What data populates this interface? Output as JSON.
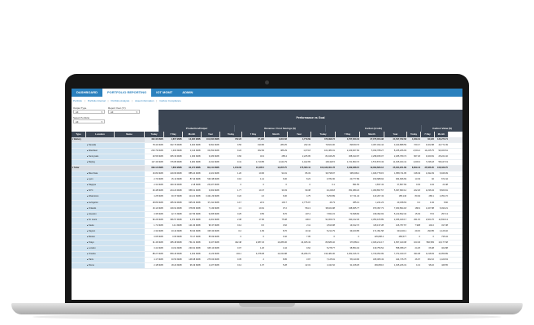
{
  "nav": {
    "tabs": [
      {
        "label": "DASHBOARD"
      },
      {
        "label": "PORTFOLIO REPORTING"
      },
      {
        "label": "IOT MGMT"
      },
      {
        "label": "ADMIN"
      }
    ],
    "active_tab": "PORTFOLIO REPORTING"
  },
  "subnav": [
    "Portfolio",
    "Portfolio Internal",
    "Portfolio Analysis",
    "Asset Information",
    "Carbon Compliance"
  ],
  "filters": {
    "output_type_label": "Output Type",
    "output_type_value": "All",
    "report_year_label": "Report Year (Yr)",
    "report_year_value": "All",
    "select_portfolio_label": "Select Portfolio",
    "select_portfolio_value": "All"
  },
  "table": {
    "super_header": "Performance vs Goal",
    "group_headers": [
      "Production/Output",
      "Revenue / Cost Savings ($)",
      "Carbon (tco2e)",
      "Carbon Value ($)"
    ],
    "col_headers": [
      "Type",
      "Location",
      "Name",
      "Today",
      "7 Day",
      "Month",
      "Year",
      "Today",
      "7 Day",
      "Month",
      "Year",
      "Today",
      "7 Day",
      "Month",
      "Year",
      "Today",
      "7 Day",
      "Month"
    ],
    "rows": [
      {
        "kind": "group",
        "type": "Battery",
        "loc": "",
        "name": "",
        "v": [
          "402.32 MWh",
          "3,807 MWh",
          "13,295 MWh",
          "131,002 MWh",
          "722.23",
          "37,195",
          "3,903.58",
          "4,779.69",
          "370,998.73",
          "4,707,000.04",
          "27,075,003.98",
          "34,537,782.66",
          "4,369.31",
          "84,026",
          "133,270.74"
        ]
      },
      {
        "kind": "child",
        "type": "",
        "loc": "Nevada",
        "name": "",
        "v": [
          "78.44 MWh",
          "322.79 MWh",
          "3,400 MWh",
          "9,991 MWh",
          "9.56",
          "190.86",
          "280.25",
          "232.43",
          "79,604.00",
          "828,847.8",
          "3,367,494.44",
          "3,423,888.59",
          "720.17",
          "3,402.88",
          "42,772.49"
        ]
      },
      {
        "kind": "child",
        "type": "",
        "loc": "Aberdeen",
        "name": "",
        "v": [
          "203.79 MWh",
          "1,463 MWh",
          "3,113 MWh",
          "33,252 MWh",
          "9.22",
          "302.84",
          "386.29",
          "1,074.8",
          "101,380.31",
          "2,229,907.84",
          "5,033,788.27",
          "8,235,266.93",
          "2,001.2",
          "14,225.75",
          "90,320.61"
        ]
      },
      {
        "kind": "child",
        "type": "",
        "loc": "Sunnyvale",
        "name": "",
        "v": [
          "20.56 MWh",
          "305.33 MWh",
          "1,303 MWh",
          "3,183 MWh",
          "0.60",
          "43.3",
          "285.4",
          "2,225.95",
          "81,946.25",
          "368,913.97",
          "2,298,935.07",
          "2,295,780.74",
          "667.18",
          "3,320.81",
          "25,221.02"
        ]
      },
      {
        "kind": "child",
        "type": "",
        "loc": "Beijing",
        "name": "",
        "v": [
          "117.43 MWh",
          "715.86 MWh",
          "3,481 MWh",
          "4,191 MWh",
          "9.41",
          "1,710.85",
          "2,444.79",
          "4,422.65",
          "139,320.5",
          "1,721,803.72",
          "4,572,873.43",
          "11,915,324.41",
          "1,003.3",
          "7,236.18",
          "58,447.19"
        ]
      },
      {
        "kind": "group",
        "type": "Solar",
        "loc": "",
        "name": "",
        "v": [
          "396.12 MWh",
          "7,860 MWh",
          "33,174 MWh",
          "80,441 MWh",
          "1,159.06",
          "10,405.5",
          "14,955.75",
          "175,660.44",
          "103,433,001.78",
          "4,469,388.15",
          "19,093,683.12",
          "35,304,201.89",
          "8,809.44",
          "35,586.35",
          "108,039.70"
        ]
      },
      {
        "kind": "child",
        "type": "",
        "loc": "Boa Vista",
        "name": "",
        "v": [
          "16.82 MWh",
          "149.69 MWh",
          "885.24 MWh",
          "1,321 MWh",
          "1.20",
          "10.96",
          "94.01",
          "86.33",
          "39,798.97",
          "395,009.2",
          "1,946,778.15",
          "1,858,711.95",
          "138.49",
          "1,492.29",
          "6,946.09"
        ]
      },
      {
        "kind": "child",
        "type": "",
        "loc": "Lyon",
        "name": "",
        "v": [
          "2.74 MWh",
          "15.13 MWh",
          "87.43 MWh",
          "533.38 MWh",
          "0.16",
          "1.14",
          "6.06",
          "8.23",
          "3,782.36",
          "20,777.89",
          "150,688.94",
          "904,846.69",
          "13.33",
          "92",
          "672.44"
        ]
      },
      {
        "kind": "child",
        "type": "",
        "loc": "Nagoya",
        "name": "",
        "v": [
          "2.31 MWh",
          "430.33 MWh",
          "2.18 MWh",
          "26,327 MWh",
          "0",
          "0",
          "0",
          "0",
          "0.1",
          "891.55",
          "2,837.43",
          "37,867.69",
          "0.03",
          "4.04",
          "23.48"
        ]
      },
      {
        "kind": "child",
        "type": "",
        "loc": "NYC",
        "name": "",
        "v": [
          "26.48 MWh",
          "224.23 MWh",
          "958.31 MWh",
          "3,302 MWh",
          "1.77",
          "10.47",
          "30.33",
          "99.38",
          "44,236.8",
          "351,089.23",
          "1,369,897.57",
          "5,097,683.12",
          "222.18",
          "2,236.04",
          "8,660.91"
        ]
      },
      {
        "kind": "child",
        "type": "",
        "loc": "Watertown",
        "name": "",
        "v": [
          "4.25 MWh",
          "30.37 MWh",
          "114.21 MWh",
          "3,421.29 MWh",
          "0.22",
          "1.6",
          "6.06",
          "4.75",
          "5,250.89",
          "37,711.42",
          "143,207.43",
          "185,140",
          "80.94",
          "286.1",
          "2,354.72"
        ]
      },
      {
        "kind": "child",
        "type": "",
        "loc": "Livingston",
        "name": "",
        "v": [
          "28.83 MWh",
          "185.93 MWh",
          "935.03 MWh",
          "37,211 MWh",
          "4.17",
          "22.3",
          "103.7",
          "2,775.97",
          "46.73",
          "385.13",
          "1,241.23",
          "40,338.63",
          "0.2",
          "1.94",
          "6.82"
        ]
      },
      {
        "kind": "child",
        "type": "",
        "loc": "Orlando",
        "name": "",
        "v": [
          "16.14 MWh",
          "139.91 MWh",
          "378.83 MWh",
          "7,149 MWh",
          "1.3",
          "10.91",
          "37.2",
          "561.3",
          "38,024.98",
          "348,825.77",
          "970,397.73",
          "7,303,894.18",
          "180.9",
          "1,327.88",
          "6,490.21"
        ]
      },
      {
        "kind": "child",
        "type": "",
        "loc": "Houston",
        "name": "",
        "v": [
          "3.35 MWh",
          "22.71 MWh",
          "117.83 MWh",
          "9,265 MWh",
          "0.25",
          "0.55",
          "8.76",
          "107.4",
          "7,651.15",
          "73,698.84",
          "318,392.93",
          "5,213,832.32",
          "15.03",
          "73.5",
          "257.13"
        ]
      },
      {
        "kind": "child",
        "type": "",
        "loc": "St. Louis",
        "name": "",
        "v": [
          "96.26 MWh",
          "396.57 MWh",
          "2,372 MWh",
          "4,201 MWh",
          "2.38",
          "17.96",
          "75.08",
          "146.6",
          "91,009.74",
          "490,212.29",
          "2,353,105.89",
          "2,306,429.17",
          "291.15",
          "2,604.76",
          "11,833.13"
        ]
      },
      {
        "kind": "child",
        "type": "",
        "loc": "Keele",
        "name": "",
        "v": [
          "1.71 MWh",
          "12.2 MWh",
          "121.93 MWh",
          "96.37 MWh",
          "0.14",
          "0.6",
          "3.62",
          "2.11",
          "2,810.08",
          "19,012.72",
          "115,137.28",
          "126,797.67",
          "7.908",
          "102.2",
          "317.38"
        ]
      },
      {
        "kind": "child",
        "type": "",
        "loc": "Dayton",
        "name": "",
        "v": [
          "2.32 MWh",
          "23.44 MWh",
          "53.94 MWh",
          "325.33 MWh",
          "0.2",
          "1.83",
          "8.76",
          "10.44",
          "5,214.79",
          "39,160.85",
          "171,391.58",
          "301,034.1",
          "29.15",
          "293.85",
          "1,126.02"
        ]
      },
      {
        "kind": "child",
        "type": "",
        "loc": "Boston",
        "name": "",
        "v": [
          "0.65 MWh",
          "0.65 MWh",
          "70.17 MWh",
          "55.69 MWh",
          "0",
          "0",
          "0.42",
          "7.05",
          "0",
          "0",
          "125,838.4",
          "286,577",
          "0",
          "0",
          "735.34"
        ]
      },
      {
        "kind": "child",
        "type": "",
        "loc": "Tokyo",
        "name": "",
        "v": [
          "31.46 MWh",
          "185.48 MWh",
          "761.61 MWh",
          "3,107 MWh",
          "402.48",
          "2,387.23",
          "13,286.06",
          "24,025.43",
          "80,686.32",
          "370,884.4",
          "2,026,214.17",
          "4,657,440.08",
          "103.46",
          "582,583",
          "10,177.68"
        ]
      },
      {
        "kind": "child",
        "type": "",
        "loc": "London",
        "name": "",
        "v": [
          "3.41 MWh",
          "24.91 MWh",
          "230.91 MWh",
          "945.13 MWh",
          "0.07",
          "1.26",
          "4.44",
          "9.62",
          "5,278.77",
          "38,854.04",
          "139,756.54",
          "558,058.27",
          "24.25",
          "66.98",
          "322.88"
        ]
      },
      {
        "kind": "child",
        "type": "",
        "loc": "Omaha",
        "name": "",
        "v": [
          "88.27 MWh",
          "659.46 MWh",
          "2,432 MWh",
          "4,123 MWh",
          "104.1",
          "4,078.38",
          "12,344.88",
          "46,296.73",
          "193,484.36",
          "1,062,016.74",
          "4,729,352.99",
          "7,372,430.37",
          "494.38",
          "3,218.93",
          "14,959.89"
        ]
      },
      {
        "kind": "child",
        "type": "",
        "loc": "Paris",
        "name": "",
        "v": [
          "4.17 MWh",
          "33.53 MWh",
          "148.38 MWh",
          "276.63 MWh",
          "0.35",
          "2",
          "8.95",
          "3.97",
          "7,125.91",
          "58,110.96",
          "345,065.43",
          "444,715.75",
          "46.97",
          "302.16",
          "1,429.63"
        ]
      },
      {
        "kind": "child",
        "type": "",
        "loc": "Rome",
        "name": "",
        "v": [
          "2.18 MWh",
          "18.24 MWh",
          "96.49 MWh",
          "1,227 MWh",
          "0.14",
          "1.07",
          "5.28",
          "42.31",
          "4,411.52",
          "31,108.25",
          "169,893.6",
          "1,915,226.31",
          "11.9",
          "98.22",
          "446.55"
        ]
      }
    ]
  }
}
